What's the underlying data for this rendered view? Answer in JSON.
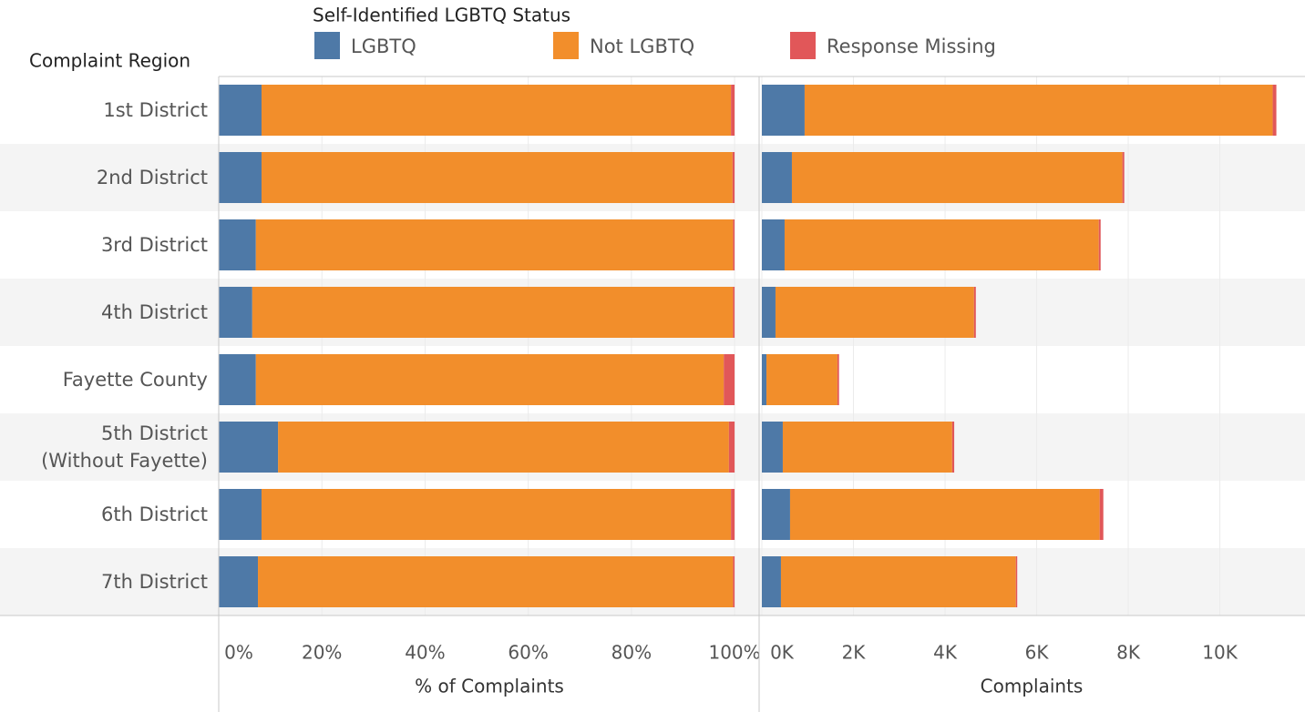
{
  "chart_data": [
    {
      "type": "stacked-bar-horizontal",
      "legend_title": "Self-Identified LGBTQ Status",
      "row_header": "Complaint Region",
      "x_label": "% of Complaints",
      "categories": [
        "1st District",
        "2nd District",
        "3rd District",
        "4th District",
        "Fayette County",
        "5th District (Without Fayette)",
        "6th District",
        "7th District"
      ],
      "series": [
        {
          "name": "LGBTQ",
          "color": "#4e79a7",
          "values": [
            8.3,
            8.3,
            7.2,
            6.5,
            7.2,
            11.5,
            8.3,
            7.6
          ]
        },
        {
          "name": "Not LGBTQ",
          "color": "#f28e2b",
          "values": [
            91.0,
            91.3,
            92.5,
            93.2,
            90.7,
            87.4,
            91.0,
            92.1
          ]
        },
        {
          "name": "Response Missing",
          "color": "#e15759",
          "values": [
            0.7,
            0.4,
            0.3,
            0.3,
            2.1,
            1.1,
            0.7,
            0.3
          ]
        }
      ],
      "xlim": [
        0,
        104.4
      ],
      "xticks": [
        {
          "value": 0,
          "label": "0%"
        },
        {
          "value": 20,
          "label": "20%"
        },
        {
          "value": 40,
          "label": "40%"
        },
        {
          "value": 60,
          "label": "60%"
        },
        {
          "value": 80,
          "label": "80%"
        },
        {
          "value": 100,
          "label": "100%"
        }
      ],
      "grid": true
    },
    {
      "type": "stacked-bar-horizontal",
      "x_label": "Complaints",
      "series": [
        {
          "values": [
            934,
            656,
            497,
            298,
            100,
            457,
            616,
            417
          ]
        },
        {
          "values": [
            10220,
            7217,
            6860,
            4334,
            1550,
            3698,
            6760,
            5129
          ]
        },
        {
          "values": [
            80,
            40,
            40,
            40,
            35,
            45,
            80,
            30
          ]
        }
      ],
      "xlim": [
        0,
        11700
      ],
      "xticks": [
        {
          "value": 0,
          "label": "0K"
        },
        {
          "value": 2000,
          "label": "2K"
        },
        {
          "value": 4000,
          "label": "4K"
        },
        {
          "value": 6000,
          "label": "6K"
        },
        {
          "value": 8000,
          "label": "8K"
        },
        {
          "value": 10000,
          "label": "10K"
        }
      ],
      "grid": true
    }
  ]
}
